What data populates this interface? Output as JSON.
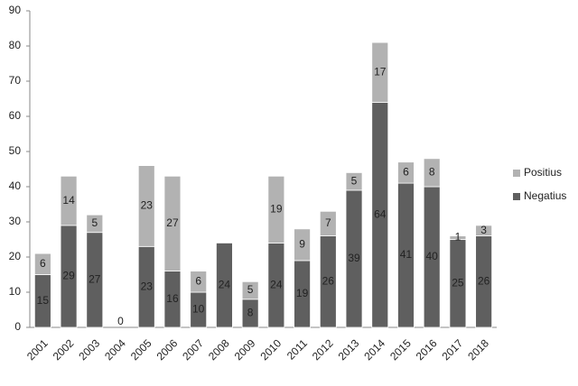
{
  "chart_data": {
    "type": "stacked-bar",
    "categories": [
      "2001",
      "2002",
      "2003",
      "2004",
      "2005",
      "2006",
      "2007",
      "2008",
      "2009",
      "2010",
      "2011",
      "2012",
      "2013",
      "2014",
      "2015",
      "2016",
      "2017",
      "2018"
    ],
    "series": [
      {
        "name": "Negatius",
        "color": "#5f5f5f",
        "values": [
          15,
          29,
          27,
          0,
          23,
          16,
          10,
          24,
          8,
          24,
          19,
          26,
          39,
          64,
          41,
          40,
          25,
          26
        ]
      },
      {
        "name": "Positius",
        "color": "#b2b2b2",
        "values": [
          6,
          14,
          5,
          null,
          23,
          27,
          6,
          null,
          5,
          19,
          9,
          7,
          5,
          17,
          6,
          8,
          1,
          3
        ]
      }
    ],
    "ylim": [
      0,
      90
    ],
    "yticks": [
      0,
      10,
      20,
      30,
      40,
      50,
      60,
      70,
      80,
      90
    ],
    "grid": false,
    "legend": "right"
  }
}
